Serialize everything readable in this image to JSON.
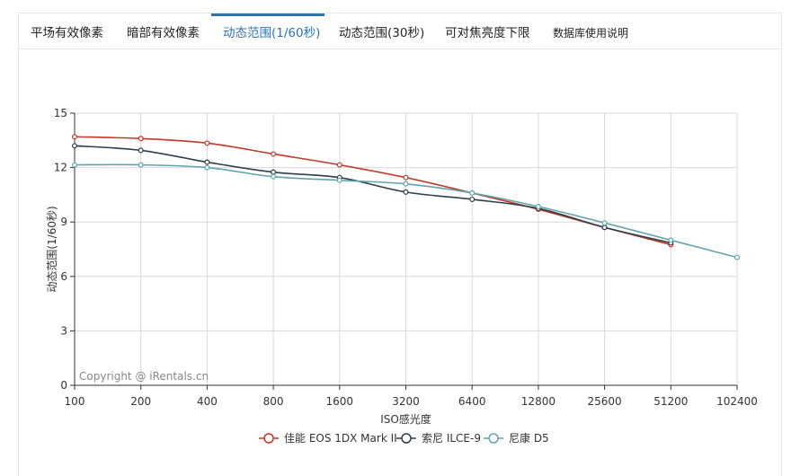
{
  "tabs": [
    {
      "label": "平场有效像素",
      "active": false
    },
    {
      "label": "暗部有效像素",
      "active": false
    },
    {
      "label": "动态范围(1/60秒)",
      "active": true
    },
    {
      "label": "动态范围(30秒)",
      "active": false
    },
    {
      "label": "可对焦亮度下限",
      "active": false
    },
    {
      "label": "数据库使用说明",
      "active": false
    }
  ],
  "colors": {
    "accent": "#2d73b2",
    "grid": "#d9d9d9",
    "axis": "#333333"
  },
  "chart_data": {
    "type": "line",
    "title": "",
    "xlabel": "ISO感光度",
    "ylabel": "动态范围(1/60秒)",
    "x": [
      "100",
      "200",
      "400",
      "800",
      "1600",
      "3200",
      "6400",
      "12800",
      "25600",
      "51200",
      "102400"
    ],
    "ylim": [
      0,
      15
    ],
    "yticks": [
      0,
      3,
      6,
      9,
      12,
      15
    ],
    "grid": true,
    "legend_position": "bottom",
    "watermark": "Copyright @ iRentals.cn",
    "series": [
      {
        "name": "佳能 EOS 1DX Mark II",
        "color": "#c0392b",
        "values": [
          13.7,
          13.6,
          13.35,
          12.75,
          12.15,
          11.45,
          10.6,
          9.7,
          8.7,
          7.75,
          null
        ]
      },
      {
        "name": "索尼 ILCE-9",
        "color": "#2f3d4b",
        "values": [
          13.2,
          12.95,
          12.3,
          11.75,
          11.45,
          10.65,
          10.25,
          9.75,
          8.7,
          7.85,
          null
        ]
      },
      {
        "name": "尼康 D5",
        "color": "#5fa4ad",
        "values": [
          12.15,
          12.15,
          12.0,
          11.5,
          11.3,
          11.1,
          10.6,
          9.85,
          8.95,
          8.0,
          7.05
        ]
      }
    ]
  }
}
